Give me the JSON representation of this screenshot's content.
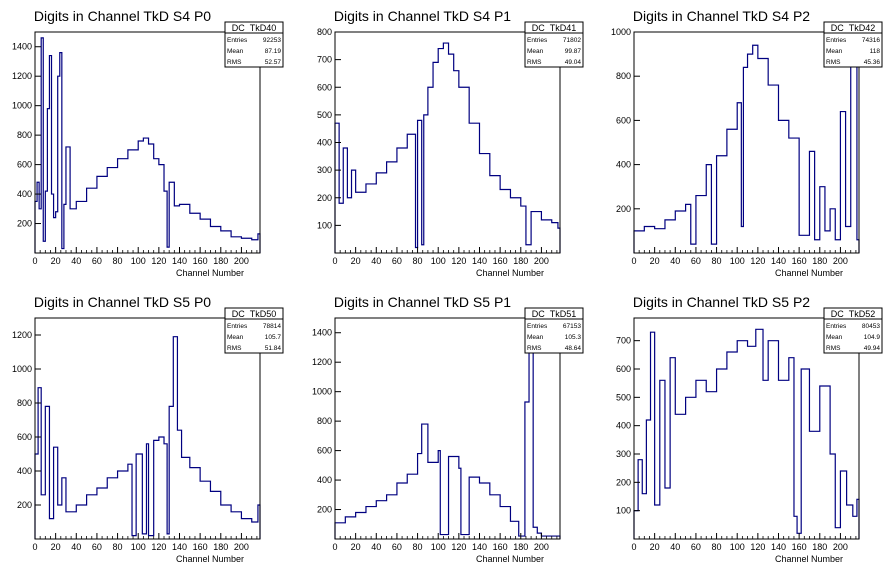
{
  "chart_data": [
    {
      "type": "histogram",
      "title": "Digits in Channel TkD S4 P0",
      "xlabel": "Channel Number",
      "xlim": [
        0,
        218
      ],
      "ylim": [
        0,
        1500
      ],
      "xticks": [
        0,
        20,
        40,
        60,
        80,
        100,
        120,
        140,
        160,
        180,
        200
      ],
      "yticks": [
        200,
        400,
        600,
        800,
        1000,
        1200,
        1400
      ],
      "stats": {
        "name": "DC_TkD40",
        "entries": "92253",
        "mean": "87.19",
        "rms": "52.57"
      },
      "series": [
        {
          "x": [
            0,
            2,
            4,
            6,
            8,
            10,
            12,
            14,
            16,
            18,
            20,
            22,
            24,
            26,
            28,
            30,
            34,
            40,
            50,
            60,
            70,
            80,
            90,
            100,
            105,
            110,
            115,
            120,
            125,
            128,
            130,
            135,
            140,
            150,
            160,
            170,
            180,
            190,
            200,
            210,
            216
          ],
          "values": [
            350,
            480,
            300,
            1460,
            80,
            420,
            980,
            1340,
            400,
            240,
            280,
            1200,
            1360,
            30,
            330,
            720,
            300,
            350,
            440,
            520,
            580,
            640,
            700,
            760,
            780,
            740,
            640,
            600,
            420,
            40,
            480,
            320,
            330,
            270,
            230,
            180,
            150,
            110,
            100,
            90,
            130
          ]
        }
      ]
    },
    {
      "type": "histogram",
      "title": "Digits in Channel TkD S4 P1",
      "xlabel": "Channel Number",
      "xlim": [
        0,
        218
      ],
      "ylim": [
        0,
        800
      ],
      "xticks": [
        0,
        20,
        40,
        60,
        80,
        100,
        120,
        140,
        160,
        180,
        200
      ],
      "yticks": [
        100,
        200,
        300,
        400,
        500,
        600,
        700,
        800
      ],
      "stats": {
        "name": "DC_TkD41",
        "entries": "71802",
        "mean": "99.87",
        "rms": "49.04"
      },
      "series": [
        {
          "x": [
            0,
            4,
            8,
            12,
            16,
            20,
            30,
            40,
            50,
            60,
            70,
            78,
            80,
            84,
            86,
            90,
            95,
            100,
            105,
            110,
            115,
            120,
            130,
            140,
            150,
            160,
            170,
            180,
            185,
            190,
            200,
            210,
            216
          ],
          "values": [
            470,
            180,
            380,
            200,
            300,
            220,
            250,
            290,
            330,
            380,
            430,
            20,
            480,
            30,
            500,
            600,
            690,
            740,
            760,
            720,
            660,
            600,
            470,
            360,
            280,
            230,
            200,
            170,
            30,
            150,
            120,
            110,
            90
          ]
        }
      ]
    },
    {
      "type": "histogram",
      "title": "Digits in Channel TkD S4 P2",
      "xlabel": "Channel Number",
      "xlim": [
        0,
        218
      ],
      "ylim": [
        0,
        1000
      ],
      "xticks": [
        0,
        20,
        40,
        60,
        80,
        100,
        120,
        140,
        160,
        180,
        200
      ],
      "yticks": [
        200,
        400,
        600,
        800,
        1000
      ],
      "stats": {
        "name": "DC_TkD42",
        "entries": "74316",
        "mean": "118",
        "rms": "45.36"
      },
      "series": [
        {
          "x": [
            0,
            10,
            20,
            30,
            40,
            50,
            55,
            60,
            70,
            75,
            80,
            90,
            100,
            104,
            106,
            110,
            115,
            120,
            130,
            140,
            150,
            160,
            170,
            175,
            180,
            185,
            190,
            195,
            200,
            205,
            210,
            216
          ],
          "values": [
            100,
            120,
            110,
            150,
            190,
            220,
            40,
            260,
            400,
            40,
            440,
            560,
            680,
            120,
            840,
            900,
            940,
            880,
            760,
            600,
            520,
            80,
            460,
            60,
            300,
            100,
            200,
            60,
            640,
            120,
            860,
            60
          ]
        }
      ]
    },
    {
      "type": "histogram",
      "title": "Digits in Channel TkD S5 P0",
      "xlabel": "Channel Number",
      "xlim": [
        0,
        218
      ],
      "ylim": [
        0,
        1300
      ],
      "xticks": [
        0,
        20,
        40,
        60,
        80,
        100,
        120,
        140,
        160,
        180,
        200
      ],
      "yticks": [
        200,
        400,
        600,
        800,
        1000,
        1200
      ],
      "stats": {
        "name": "DC_TkD50",
        "entries": "78814",
        "mean": "105.7",
        "rms": "51.84"
      },
      "series": [
        {
          "x": [
            0,
            3,
            6,
            10,
            14,
            18,
            22,
            26,
            30,
            40,
            50,
            60,
            70,
            80,
            90,
            94,
            98,
            104,
            108,
            110,
            115,
            120,
            125,
            128,
            130,
            134,
            138,
            142,
            150,
            160,
            170,
            180,
            190,
            200,
            210,
            216
          ],
          "values": [
            500,
            890,
            260,
            780,
            120,
            540,
            200,
            360,
            160,
            200,
            260,
            300,
            360,
            400,
            440,
            20,
            500,
            30,
            560,
            20,
            580,
            600,
            560,
            30,
            780,
            1190,
            640,
            480,
            420,
            340,
            280,
            200,
            160,
            120,
            100,
            200
          ]
        }
      ]
    },
    {
      "type": "histogram",
      "title": "Digits in Channel TkD S5 P1",
      "xlabel": "Channel Number",
      "xlim": [
        0,
        218
      ],
      "ylim": [
        0,
        1500
      ],
      "xticks": [
        0,
        20,
        40,
        60,
        80,
        100,
        120,
        140,
        160,
        180,
        200
      ],
      "yticks": [
        200,
        400,
        600,
        800,
        1000,
        1200,
        1400
      ],
      "stats": {
        "name": "DC_TkD51",
        "entries": "67153",
        "mean": "105.3",
        "rms": "48.64"
      },
      "series": [
        {
          "x": [
            0,
            10,
            20,
            30,
            40,
            50,
            60,
            70,
            80,
            84,
            90,
            100,
            102,
            110,
            120,
            122,
            130,
            140,
            150,
            160,
            170,
            178,
            184,
            188,
            192,
            196,
            200,
            205,
            210,
            216
          ],
          "values": [
            110,
            150,
            180,
            220,
            260,
            300,
            380,
            440,
            580,
            780,
            520,
            600,
            30,
            560,
            480,
            30,
            420,
            380,
            300,
            220,
            120,
            20,
            930,
            1500,
            80,
            40,
            20,
            20,
            20,
            20
          ]
        }
      ]
    },
    {
      "type": "histogram",
      "title": "Digits in Channel TkD S5 P2",
      "xlabel": "Channel Number",
      "xlim": [
        0,
        218
      ],
      "ylim": [
        0,
        780
      ],
      "xticks": [
        0,
        20,
        40,
        60,
        80,
        100,
        120,
        140,
        160,
        180,
        200
      ],
      "yticks": [
        100,
        200,
        300,
        400,
        500,
        600,
        700
      ],
      "stats": {
        "name": "DC_TkD52",
        "entries": "80453",
        "mean": "104.9",
        "rms": "49.94"
      },
      "series": [
        {
          "x": [
            0,
            4,
            8,
            12,
            16,
            20,
            25,
            30,
            35,
            40,
            50,
            60,
            70,
            80,
            90,
            100,
            110,
            118,
            125,
            130,
            140,
            150,
            155,
            158,
            162,
            170,
            180,
            190,
            195,
            200,
            206,
            212,
            216
          ],
          "values": [
            100,
            280,
            160,
            420,
            730,
            120,
            560,
            180,
            640,
            440,
            500,
            560,
            520,
            600,
            660,
            700,
            680,
            740,
            560,
            700,
            560,
            640,
            80,
            20,
            600,
            380,
            540,
            300,
            40,
            240,
            120,
            80,
            140
          ]
        }
      ]
    }
  ]
}
